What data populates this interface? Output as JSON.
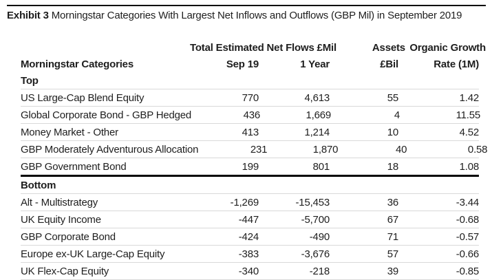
{
  "exhibit": {
    "label": "Exhibit 3",
    "title": "Morningstar Categories With Largest Net Inflows and Outflows (GBP Mil) in September 2019"
  },
  "table": {
    "group_header": "Total Estimated Net Flows £Mil",
    "columns": {
      "category": "Morningstar Categories",
      "sep19": "Sep 19",
      "one_year": "1 Year",
      "assets_line1": "Assets",
      "assets_line2": "£Bil",
      "organic_line1": "Organic Growth",
      "organic_line2": "Rate (1M)"
    },
    "sections": [
      {
        "label": "Top",
        "rows": [
          {
            "category": "US Large-Cap Blend Equity",
            "sep19": "770",
            "one_year": "4,613",
            "assets": "55",
            "organic": "1.42"
          },
          {
            "category": "Global Corporate Bond - GBP Hedged",
            "sep19": "436",
            "one_year": "1,669",
            "assets": "4",
            "organic": "11.55"
          },
          {
            "category": "Money Market - Other",
            "sep19": "413",
            "one_year": "1,214",
            "assets": "10",
            "organic": "4.52"
          },
          {
            "category": "GBP Moderately Adventurous Allocation",
            "sep19": "231",
            "one_year": "1,870",
            "assets": "40",
            "organic": "0.58"
          },
          {
            "category": "GBP Government Bond",
            "sep19": "199",
            "one_year": "801",
            "assets": "18",
            "organic": "1.08"
          }
        ]
      },
      {
        "label": "Bottom",
        "rows": [
          {
            "category": "Alt - Multistrategy",
            "sep19": "-1,269",
            "one_year": "-15,453",
            "assets": "36",
            "organic": "-3.44"
          },
          {
            "category": "UK Equity Income",
            "sep19": "-447",
            "one_year": "-5,700",
            "assets": "67",
            "organic": "-0.68"
          },
          {
            "category": "GBP Corporate Bond",
            "sep19": "-424",
            "one_year": "-490",
            "assets": "71",
            "organic": "-0.57"
          },
          {
            "category": "Europe ex-UK Large-Cap Equity",
            "sep19": "-383",
            "one_year": "-3,676",
            "assets": "57",
            "organic": "-0.66"
          },
          {
            "category": "UK Flex-Cap Equity",
            "sep19": "-340",
            "one_year": "-218",
            "assets": "39",
            "organic": "-0.85"
          }
        ]
      }
    ]
  },
  "colors": {
    "text": "#1e1e1e",
    "rule_black": "#000000",
    "rule_gray": "#d9d9d9",
    "background": "#ffffff"
  }
}
